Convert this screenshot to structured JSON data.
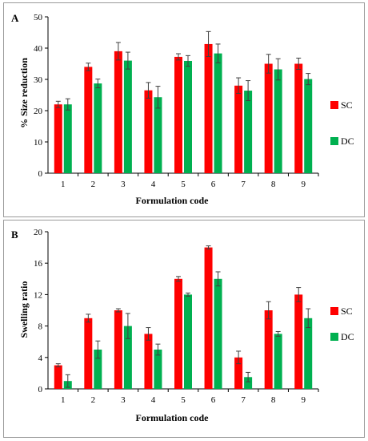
{
  "colors": {
    "SC": "#ff0000",
    "DC": "#00b050",
    "axis": "#000000",
    "error": "#404040"
  },
  "chart_data": [
    {
      "panel": "A",
      "type": "bar",
      "xlabel": "Formulation code",
      "ylabel": "% Size reduction",
      "ylim": [
        0,
        50
      ],
      "yticks": [
        0,
        10,
        20,
        30,
        40,
        50
      ],
      "categories": [
        "1",
        "2",
        "3",
        "4",
        "5",
        "6",
        "7",
        "8",
        "9"
      ],
      "legend_position": "right",
      "grid": false,
      "series": [
        {
          "name": "SC",
          "values": [
            22,
            34,
            39,
            26.5,
            37.2,
            41.3,
            28,
            35,
            35
          ],
          "errors": [
            1,
            1.2,
            2.8,
            2.5,
            1,
            4,
            2.5,
            3,
            1.8
          ]
        },
        {
          "name": "DC",
          "values": [
            22,
            28.7,
            36,
            24.3,
            35.9,
            38.3,
            26.4,
            33.2,
            30.1
          ],
          "errors": [
            1.8,
            1.4,
            2.7,
            3.5,
            1.7,
            3,
            3.2,
            3.4,
            1.8
          ]
        }
      ]
    },
    {
      "panel": "B",
      "type": "bar",
      "xlabel": "Formulation code",
      "ylabel": "Swelling ratio",
      "ylim": [
        0,
        20
      ],
      "yticks": [
        0,
        4,
        8,
        12,
        16,
        20
      ],
      "categories": [
        "1",
        "2",
        "3",
        "4",
        "5",
        "6",
        "7",
        "8",
        "9"
      ],
      "legend_position": "right",
      "grid": false,
      "series": [
        {
          "name": "SC",
          "values": [
            3,
            9,
            10,
            7,
            14,
            18,
            4,
            10,
            12
          ],
          "errors": [
            0.2,
            0.5,
            0.2,
            0.8,
            0.3,
            0.2,
            0.8,
            1.1,
            0.9
          ]
        },
        {
          "name": "DC",
          "values": [
            1,
            5,
            8,
            5,
            12,
            14,
            1.5,
            7,
            9
          ],
          "errors": [
            0.8,
            1.1,
            1.6,
            0.7,
            0.2,
            0.9,
            0.6,
            0.3,
            1.2
          ]
        }
      ]
    }
  ]
}
